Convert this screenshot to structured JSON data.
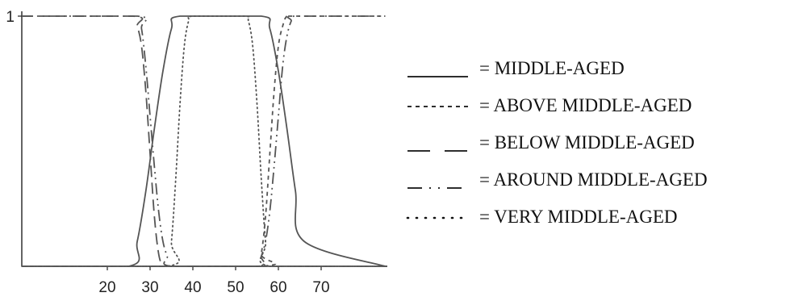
{
  "chart_data": {
    "type": "line",
    "title": "",
    "xlabel": "",
    "ylabel": "",
    "xlim": [
      0,
      85
    ],
    "ylim": [
      0,
      1
    ],
    "x_ticks": [
      "20",
      "30",
      "40",
      "50",
      "60",
      "70"
    ],
    "x_tick_values": [
      20,
      30,
      40,
      50,
      60,
      70
    ],
    "y_ticks": [
      "1"
    ],
    "y_tick_values": [
      1
    ],
    "grid": false,
    "legend_position": "right",
    "series": [
      {
        "name": "= MIDDLE-AGED",
        "dash": "solid",
        "x": [
          0,
          25,
          27,
          29,
          31,
          33,
          35,
          37,
          56,
          58,
          60,
          62,
          64,
          66,
          85
        ],
        "y": [
          0,
          0,
          0.1,
          0.3,
          0.55,
          0.78,
          0.95,
          1,
          1,
          0.95,
          0.78,
          0.55,
          0.3,
          0.1,
          0
        ]
      },
      {
        "name": "= ABOVE MIDDLE-AGED",
        "dash": "short-dash",
        "x": [
          0,
          55,
          56,
          57,
          58,
          59,
          60,
          61,
          62,
          64,
          85
        ],
        "y": [
          0,
          0,
          0.05,
          0.2,
          0.45,
          0.7,
          0.88,
          0.96,
          1,
          1,
          1
        ]
      },
      {
        "name": "= BELOW MIDDLE-AGED",
        "dash": "long-dash",
        "x": [
          0,
          26,
          27,
          28,
          29,
          30,
          31,
          32,
          33,
          34,
          85
        ],
        "y": [
          1,
          1,
          0.96,
          0.88,
          0.7,
          0.45,
          0.2,
          0.05,
          0,
          0,
          0
        ]
      },
      {
        "name": "= AROUND MIDDLE-AGED",
        "dash": "dash-dot",
        "x": [
          0,
          27,
          28,
          29,
          30,
          31,
          32,
          33,
          34,
          35,
          55,
          56,
          57,
          58,
          59,
          60,
          61,
          62,
          63,
          64,
          85
        ],
        "y": [
          1,
          1,
          0.95,
          0.8,
          0.6,
          0.4,
          0.22,
          0.1,
          0.04,
          0,
          0,
          0.04,
          0.1,
          0.22,
          0.4,
          0.6,
          0.8,
          0.92,
          0.98,
          1,
          1
        ]
      },
      {
        "name": "= VERY MIDDLE-AGED",
        "dash": "dotted",
        "x": [
          0,
          34,
          35,
          36,
          37,
          38,
          39,
          40,
          52,
          53,
          54,
          55,
          56,
          57,
          58,
          85
        ],
        "y": [
          0,
          0,
          0.1,
          0.35,
          0.65,
          0.88,
          0.98,
          1,
          1,
          0.98,
          0.88,
          0.65,
          0.35,
          0.1,
          0,
          0
        ]
      }
    ]
  }
}
